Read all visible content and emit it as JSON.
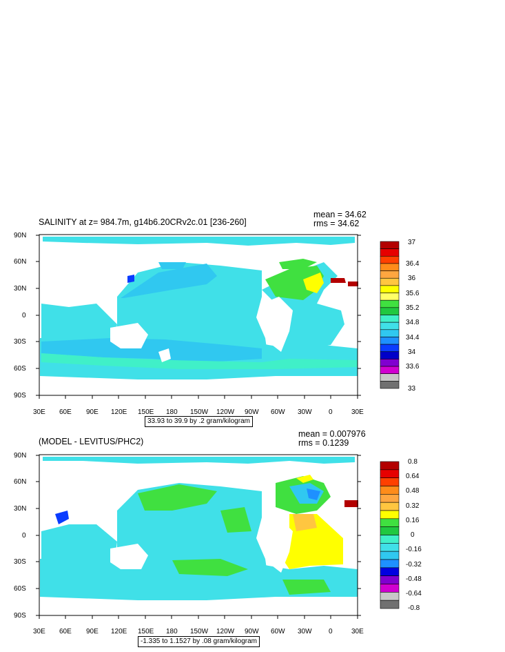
{
  "panels": [
    {
      "title": "SALINITY at z= 984.7m, g14b6.20CRv2c.01 [236-260]",
      "stats": [
        "mean = 34.62",
        "rms = 34.62"
      ],
      "subtitle": "33.93 to 39.9 by .2 gram/kilogram",
      "lat_labels": [
        "90N",
        "60N",
        "30N",
        "0",
        "30S",
        "60S",
        "90S"
      ],
      "lon_labels": [
        "30E",
        "60E",
        "90E",
        "120E",
        "150E",
        "180",
        "150W",
        "120W",
        "90W",
        "60W",
        "30W",
        "0",
        "30E"
      ],
      "colorbar_labels": [
        "37",
        "36.4",
        "36",
        "35.6",
        "35.2",
        "34.8",
        "34.4",
        "34",
        "33.6",
        "33"
      ],
      "colorbar_colors": [
        "#b30000",
        "#e60000",
        "#ff4000",
        "#ff8c1a",
        "#ffa640",
        "#ffc640",
        "#ffff00",
        "#ffff66",
        "#40e040",
        "#20c840",
        "#40f0c8",
        "#40e0e8",
        "#30c8f0",
        "#1e90ff",
        "#0a3cff",
        "#0000c8",
        "#8000d0",
        "#d000d0",
        "#c8c8c8",
        "#707070"
      ]
    },
    {
      "title": "(MODEL - LEVITUS/PHC2)",
      "stats": [
        "mean = 0.007976",
        "rms = 0.1239"
      ],
      "subtitle": "-1.335 to 1.1527 by .08 gram/kilogram",
      "lat_labels": [
        "90N",
        "60N",
        "30N",
        "0",
        "30S",
        "60S",
        "90S"
      ],
      "lon_labels": [
        "30E",
        "60E",
        "90E",
        "120E",
        "150E",
        "180",
        "150W",
        "120W",
        "90W",
        "60W",
        "30W",
        "0",
        "30E"
      ],
      "colorbar_labels": [
        "0.8",
        "0.64",
        "0.48",
        "0.32",
        "0.16",
        "0",
        "-0.16",
        "-0.32",
        "-0.48",
        "-0.64",
        "-0.8"
      ],
      "colorbar_colors": [
        "#b30000",
        "#e60000",
        "#ff4000",
        "#ff8c1a",
        "#ffa640",
        "#ffc640",
        "#ffff00",
        "#40e040",
        "#20c840",
        "#40f0c8",
        "#40e0e8",
        "#30c8f0",
        "#1e90ff",
        "#0000e0",
        "#8000d0",
        "#d000d0",
        "#c8c8c8",
        "#707070"
      ]
    }
  ]
}
